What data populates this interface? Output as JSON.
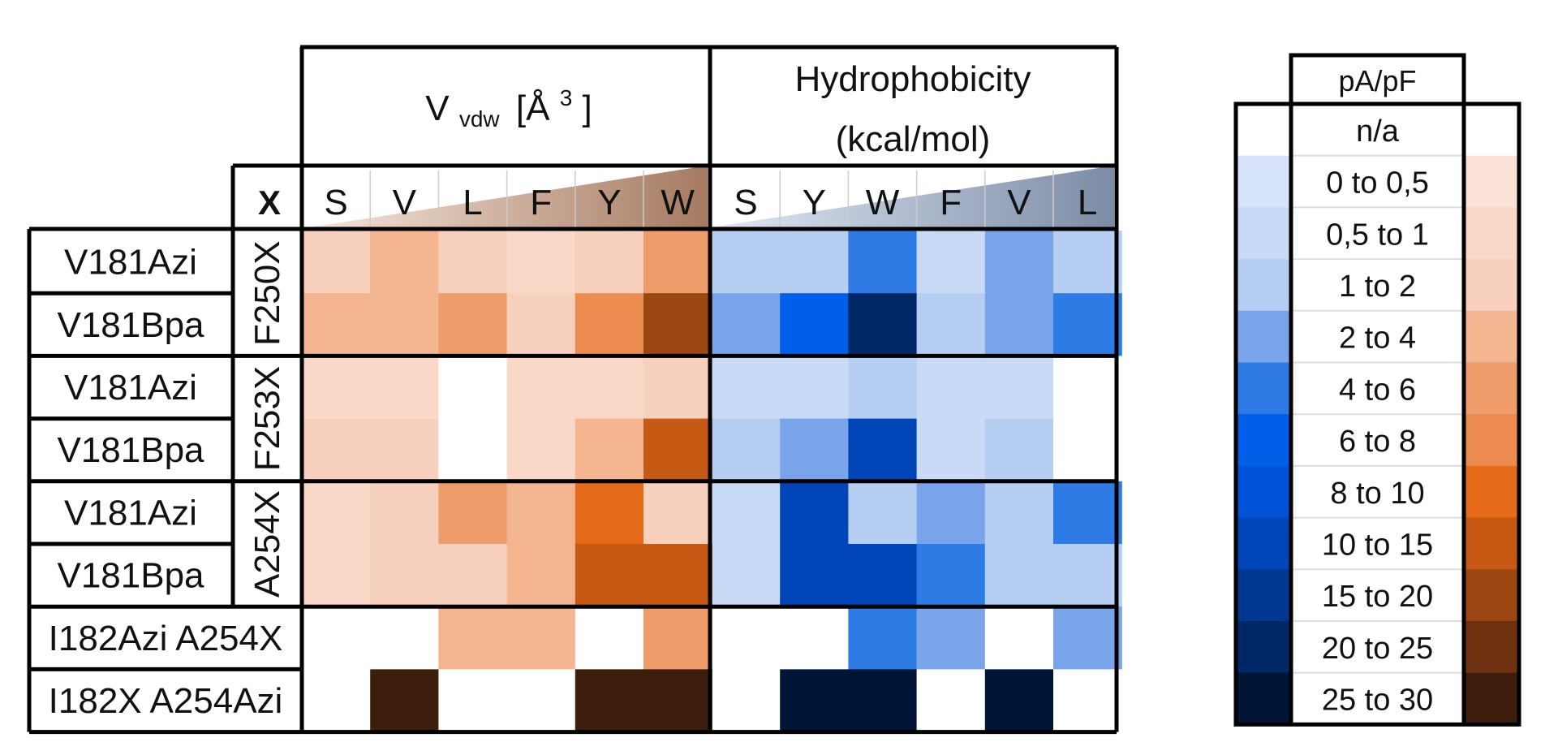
{
  "chart_data": {
    "type": "heatmap",
    "headers": {
      "volume_prefix": "V",
      "volume_subscript": "vdw",
      "volume_suffix": "[Å",
      "volume_superscript": "3",
      "volume_close": "]",
      "hydrophobicity_line1": "Hydrophobicity",
      "hydrophobicity_line2": "(kcal/mol)",
      "x_label": "X"
    },
    "volume_columns": [
      "S",
      "V",
      "L",
      "F",
      "Y",
      "W"
    ],
    "hydrophobicity_columns": [
      "S",
      "Y",
      "W",
      "F",
      "V",
      "L"
    ],
    "groups": [
      {
        "label": "F250X",
        "rows": [
          "V181Azi",
          "V181Bpa"
        ]
      },
      {
        "label": "F253X",
        "rows": [
          "V181Azi",
          "V181Bpa"
        ]
      },
      {
        "label": "A254X",
        "rows": [
          "V181Azi",
          "V181Bpa"
        ]
      },
      {
        "label": "",
        "rows": [
          "I182Azi A254X",
          "I182X A254Azi"
        ]
      }
    ],
    "value_scale": "category index into legend.bins (-1 = n/a)",
    "volume_values": [
      [
        2,
        3,
        2,
        1,
        2,
        4
      ],
      [
        3,
        3,
        4,
        2,
        5,
        8
      ],
      [
        1,
        1,
        -1,
        1,
        1,
        2
      ],
      [
        2,
        2,
        -1,
        1,
        3,
        7
      ],
      [
        1,
        2,
        4,
        3,
        6,
        2
      ],
      [
        1,
        2,
        2,
        3,
        7,
        7
      ],
      [
        -1,
        -1,
        3,
        3,
        -1,
        4
      ],
      [
        -1,
        10,
        -1,
        -1,
        10,
        10
      ]
    ],
    "hydrophobicity_values": [
      [
        2,
        2,
        4,
        1,
        3,
        2
      ],
      [
        3,
        5,
        9,
        2,
        3,
        4
      ],
      [
        1,
        1,
        2,
        1,
        1,
        -1
      ],
      [
        2,
        3,
        7,
        1,
        2,
        -1
      ],
      [
        1,
        7,
        2,
        3,
        2,
        4
      ],
      [
        1,
        7,
        7,
        4,
        2,
        2
      ],
      [
        -1,
        -1,
        4,
        3,
        -1,
        3
      ],
      [
        -1,
        10,
        10,
        -1,
        10,
        -1
      ]
    ],
    "legend": {
      "title": "pA/pF",
      "na_label": "n/a",
      "bins": [
        "0 to 0,5",
        "0,5 to 1",
        "1 to 2",
        "2 to 4",
        "4 to 6",
        "6 to 8",
        "8 to 10",
        "10 to 15",
        "15 to 20",
        "20 to 25",
        "25 to 30"
      ],
      "blue_colors": [
        "#d6e3f8",
        "#c9daf6",
        "#b7cef3",
        "#7aa4ea",
        "#2f7be6",
        "#005fe8",
        "#0053d8",
        "#0046b8",
        "#003891",
        "#002867",
        "#001535"
      ],
      "orange_colors": [
        "#fbe2d6",
        "#f9d8c7",
        "#f8d1be",
        "#f3b690",
        "#ef9c6b",
        "#ec8b4f",
        "#e56a1a",
        "#c65a14",
        "#9c4712",
        "#6f3210",
        "#3d1d0c"
      ]
    }
  }
}
